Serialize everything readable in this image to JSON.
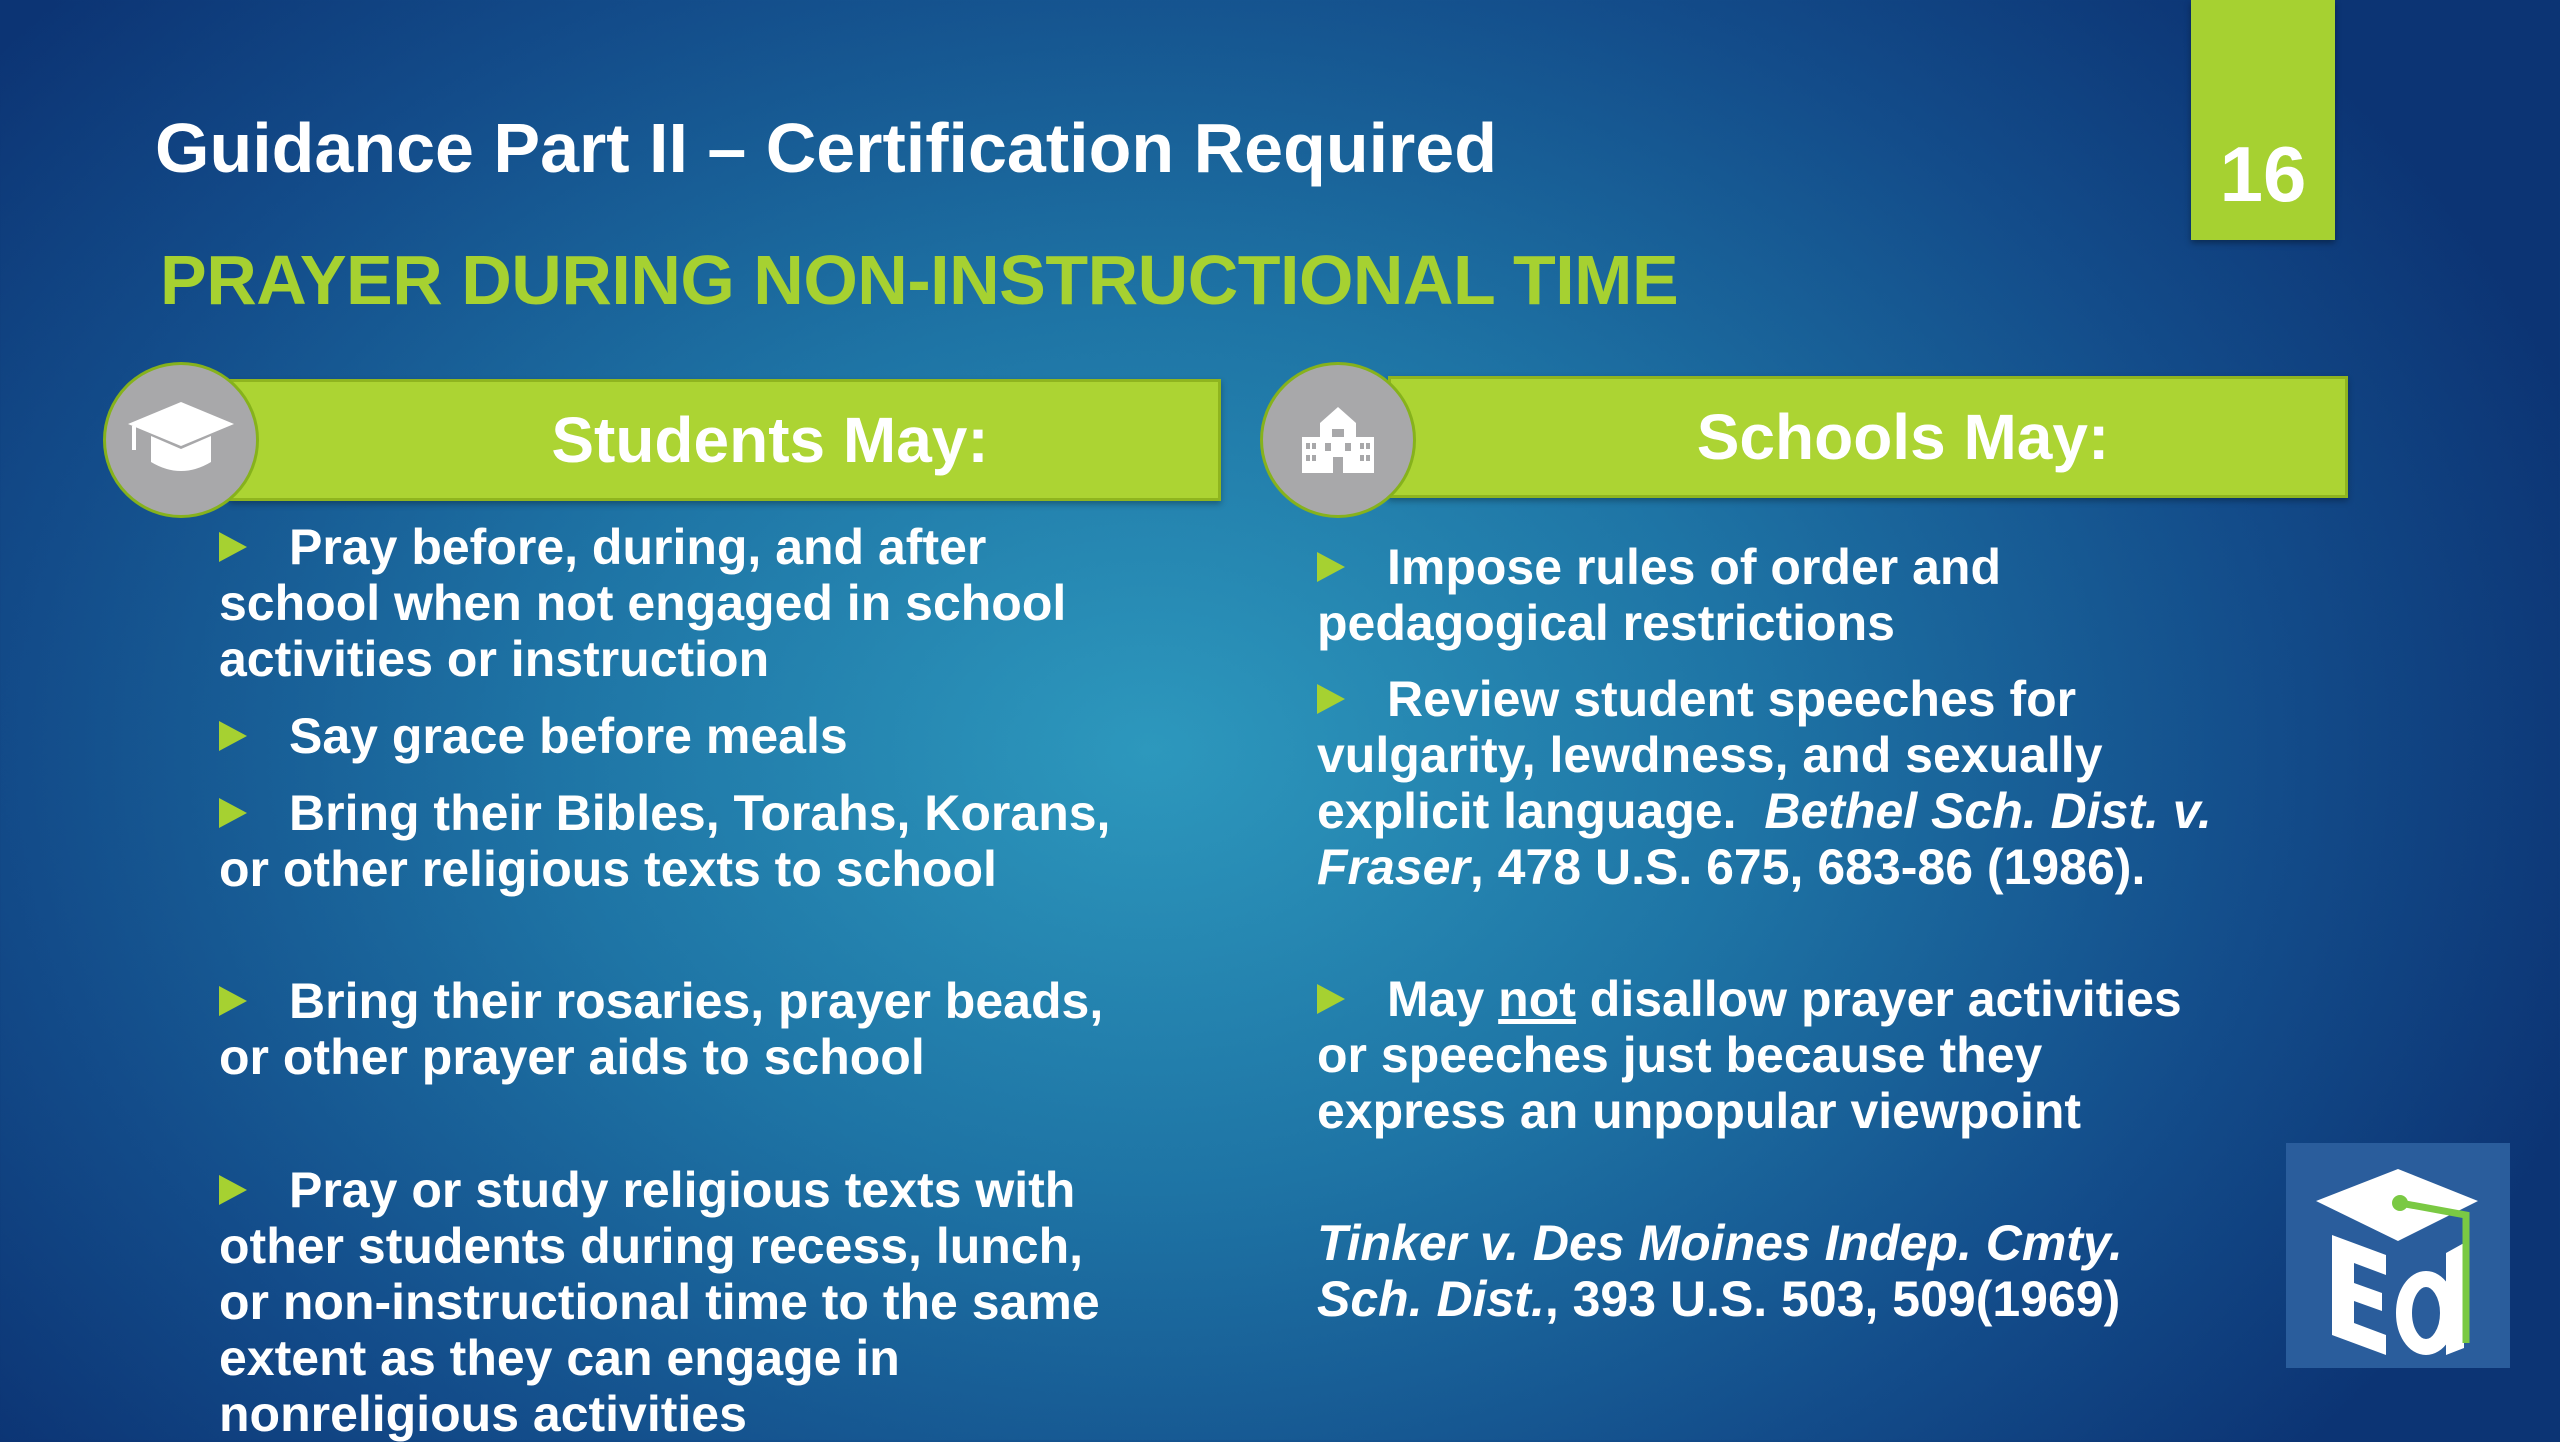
{
  "slide": {
    "title": "Guidance Part II – Certification Required",
    "subtitle": "PRAYER DURING NON-INSTRUCTIONAL TIME",
    "page_number": "16",
    "colors": {
      "accent_green": "#a6d131",
      "background_center": "#2d98bd",
      "background_edge": "#0c3474",
      "icon_circle": "#a8a8aa"
    }
  },
  "students": {
    "heading": "Students May:",
    "icon": "graduation-cap-icon",
    "items": [
      "Pray before, during, and after school when not engaged in school activities or instruction",
      "Say grace before meals",
      "Bring their Bibles, Torahs, Korans, or other religious texts to school",
      "Bring their rosaries, prayer beads, or other prayer aids to school",
      "Pray or study religious texts with other students during recess, lunch, or non-instructional time to the same extent as they can engage in nonreligious activities"
    ]
  },
  "schools": {
    "heading": "Schools May:",
    "icon": "school-building-icon",
    "item1": "Impose rules of order and pedagogical restrictions",
    "item2": {
      "text": "Review student speeches for vulgarity, lewdness, and sexually explicit language.",
      "case": "Bethel Sch. Dist. v. Fraser",
      "citation": ", 478 U.S. 675, 683-86 (1986)."
    },
    "item3": {
      "before": "May ",
      "underlined": "not",
      "after": " disallow prayer activities or speeches just because they express an unpopular viewpoint"
    },
    "citation": {
      "case": "Tinker v. Des Moines Indep. Cmty. Sch. Dist.",
      "rest": ", 393 U.S. 503, 509(1969)"
    }
  },
  "logo": {
    "text": "Ed",
    "icon": "ed-logo-icon"
  }
}
